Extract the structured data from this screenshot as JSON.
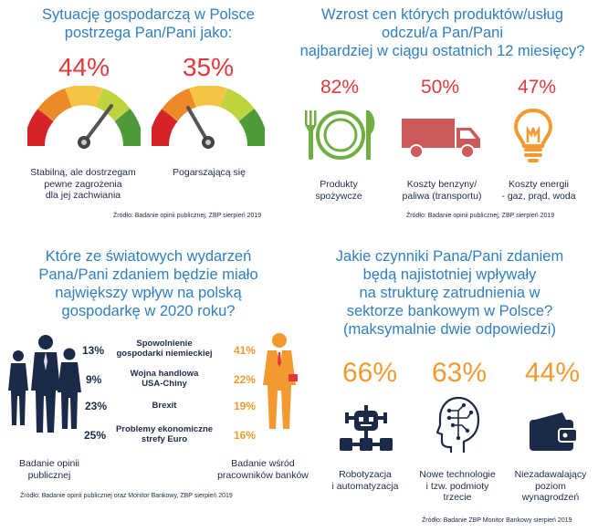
{
  "q1": {
    "title_line1": "Sytuację gospodarczą w Polsce",
    "title_line2": "postrzega Pan/Pani jako:",
    "gauges": [
      {
        "percent": "44%",
        "caption_line1": "Stabilną, ale dostrzegam",
        "caption_line2": "pewne zagrożenia",
        "caption_line3": "dla jej zachwiania"
      },
      {
        "percent": "35%",
        "caption_line1": "Pogarszającą się"
      }
    ],
    "source": "Źródło: Badanie opinii publicznej, ZBP sierpień 2019"
  },
  "q2": {
    "title_line1": "Wzrost cen których produktów/usług",
    "title_line2": "odczuł/a Pan/Pani",
    "title_line3": "najbardziej w ciągu ostatnich 12 miesięcy?",
    "items": [
      {
        "percent": "82%",
        "icon": "plate-cutlery-icon",
        "caption_line1": "Produkty",
        "caption_line2": "spożywcze"
      },
      {
        "percent": "50%",
        "icon": "truck-icon",
        "caption_line1": "Koszty benzyny/",
        "caption_line2": "paliwa (transportu)"
      },
      {
        "percent": "47%",
        "icon": "light-bulb-icon",
        "caption_line1": "Koszty energii",
        "caption_line2": "- gaz, prąd, woda"
      }
    ],
    "source": "Źródło: Badanie opinii publicznej, ZBP sierpień 2019"
  },
  "q3": {
    "title_line1": "Które ze światowych wydarzeń",
    "title_line2": "Pana/Pani zdaniem będzie miało",
    "title_line3": "największy wpływ na polską",
    "title_line4": "gospodarkę w 2020 roku?",
    "rows": [
      {
        "left": "13%",
        "label_line1": "Spowolnienie",
        "label_line2": "gospodarki niemieckiej",
        "right": "41%"
      },
      {
        "left": "9%",
        "label_line1": "Wojna handlowa",
        "label_line2": "USA-Chiny",
        "right": "22%"
      },
      {
        "left": "23%",
        "label_line1": "Brexit",
        "label_line2": "",
        "right": "19%"
      },
      {
        "left": "25%",
        "label_line1": "Problemy ekonomiczne",
        "label_line2": "strefy Euro",
        "right": "16%"
      }
    ],
    "left_group_line1": "Badanie opinii",
    "left_group_line2": "publicznej",
    "right_group_line1": "Badanie wśród",
    "right_group_line2": "pracowników banków",
    "source": "Źródło: Badanie opinii publicznej oraz Monitor Bankowy, ZBP sierpień 2019"
  },
  "q4": {
    "title_line1": "Jakie czynniki Pana/Pani zdaniem",
    "title_line2": "będą najistotniej wpływały",
    "title_line3": "na strukturę zatrudnienia w",
    "title_line4": "sektorze bankowym w Polsce?",
    "title_line5": "(maksymalnie dwie odpowiedzi)",
    "items": [
      {
        "percent": "66%",
        "icon": "robot-icon",
        "caption_line1": "Robotyzacja",
        "caption_line2": "i automatyzacja",
        "caption_line3": ""
      },
      {
        "percent": "63%",
        "icon": "circuit-head-icon",
        "caption_line1": "Nowe technologie",
        "caption_line2": "i tzw. podmioty",
        "caption_line3": "trzecie"
      },
      {
        "percent": "44%",
        "icon": "wallet-icon",
        "caption_line1": "Niezadawalający",
        "caption_line2": "poziom",
        "caption_line3": "wynagrodzeń"
      }
    ],
    "source": "Źródło: Badanie ZBP Monitor Bankowy sierpień 2019"
  },
  "colors": {
    "title_blue": "#2f7fc1",
    "red": "#e0393e",
    "orange": "#f29a2e",
    "green": "#6fae43",
    "navy": "#1c2a4a"
  }
}
